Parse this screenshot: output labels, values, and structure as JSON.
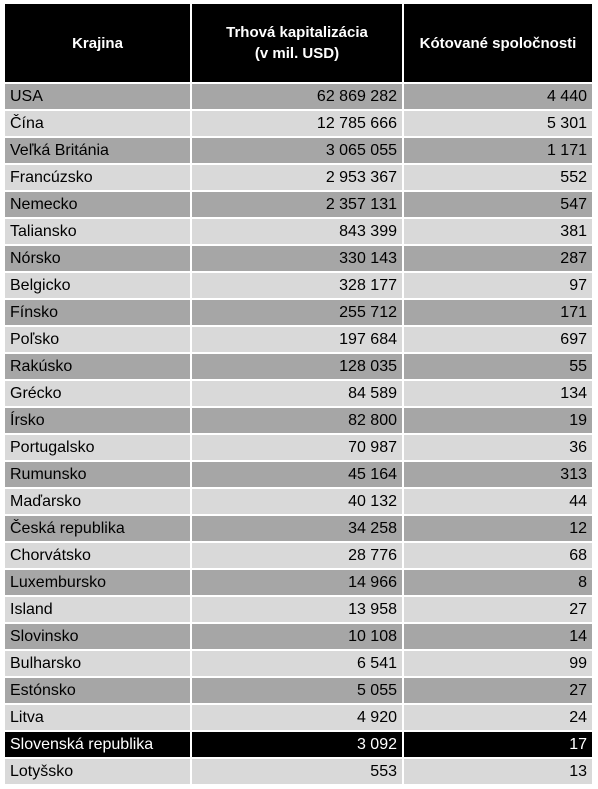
{
  "table": {
    "header": [
      "Krajina",
      [
        "Trhová kapitalizácia",
        "(v mil. USD)"
      ],
      "Kótované spoločnosti"
    ],
    "rows": [
      [
        "USA",
        "62 869 282",
        "4 440"
      ],
      [
        "Čína",
        "12 785 666",
        "5 301"
      ],
      [
        "Veľká Británia",
        "3 065 055",
        "1 171"
      ],
      [
        "Francúzsko",
        "2 953 367",
        "552"
      ],
      [
        "Nemecko",
        "2 357 131",
        "547"
      ],
      [
        "Taliansko",
        "843 399",
        "381"
      ],
      [
        "Nórsko",
        "330 143",
        "287"
      ],
      [
        "Belgicko",
        "328 177",
        "97"
      ],
      [
        "Fínsko",
        "255 712",
        "171"
      ],
      [
        "Poľsko",
        "197 684",
        "697"
      ],
      [
        "Rakúsko",
        "128 035",
        "55"
      ],
      [
        "Grécko",
        "84 589",
        "134"
      ],
      [
        "Írsko",
        "82 800",
        "19"
      ],
      [
        "Portugalsko",
        "70 987",
        "36"
      ],
      [
        "Rumunsko",
        "45 164",
        "313"
      ],
      [
        "Maďarsko",
        "40 132",
        "44"
      ],
      [
        "Česká republika",
        "34 258",
        "12"
      ],
      [
        "Chorvátsko",
        "28 776",
        "68"
      ],
      [
        "Luxembursko",
        "14 966",
        "8"
      ],
      [
        "Island",
        "13 958",
        "27"
      ],
      [
        "Slovinsko",
        "10 108",
        "14"
      ],
      [
        "Bulharsko",
        "6 541",
        "99"
      ],
      [
        "Estónsko",
        "5 055",
        "27"
      ],
      [
        "Litva",
        "4 920",
        "24"
      ],
      [
        "Slovenská republika",
        "3 092",
        "17"
      ],
      [
        "Lotyšsko",
        "553",
        "13"
      ]
    ]
  }
}
